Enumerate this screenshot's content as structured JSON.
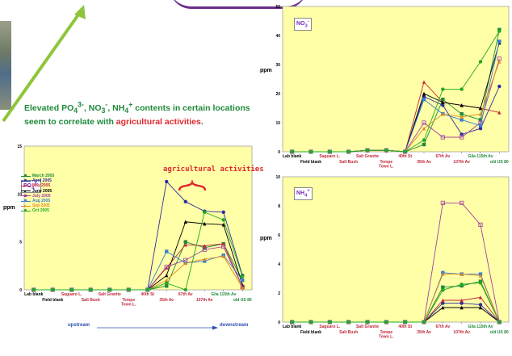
{
  "headline": {
    "text": "Elevated PO43-, NO3-, NH4+ contents in certain locations seem to correlate with",
    "highlight": "agricultural activities",
    "tail": "."
  },
  "annotation": {
    "text": "agricultural activities"
  },
  "flow": {
    "upstream": "upstream",
    "downstream": "downstream"
  },
  "colors": {
    "green": "#1e8a3a",
    "red": "#e0282e",
    "purple": "#7a2fb5",
    "plot_bg": "#ffffa8",
    "arrow": "#8fc53a",
    "flow_blue": "#2c4fb0"
  },
  "categories": [
    {
      "label": "Lab blank",
      "color": "#000000"
    },
    {
      "label": "Field blank",
      "color": "#000000"
    },
    {
      "label": "Saguaro L.",
      "color": "#c0283a"
    },
    {
      "label": "Salt Bush",
      "color": "#c0283a"
    },
    {
      "label": "Salt Granite",
      "color": "#c0283a"
    },
    {
      "label": "Tempe Town L.",
      "color": "#c0283a"
    },
    {
      "label": "40th St",
      "color": "#c0283a"
    },
    {
      "label": "35th Av",
      "color": "#c0283a"
    },
    {
      "label": "67th Av",
      "color": "#c0283a"
    },
    {
      "label": "107th Av",
      "color": "#c0283a"
    },
    {
      "label": "Gila 115th Av",
      "color": "#1e8a3a"
    },
    {
      "label": "old US 80",
      "color": "#1e8a3a"
    }
  ],
  "months": [
    {
      "name": "March 2005",
      "color": "#1e8a3a",
      "marker": "square"
    },
    {
      "name": "April 2005",
      "color": "#2c2ca0",
      "marker": "circle"
    },
    {
      "name": "May 2005",
      "color": "#c0283a",
      "marker": "triangle"
    },
    {
      "name": "June 2005",
      "color": "#000000",
      "marker": "triangle"
    },
    {
      "name": "July 2005",
      "color": "#a040a0",
      "marker": "square-open"
    },
    {
      "name": "Aug 2005",
      "color": "#3a7fd0",
      "marker": "square"
    },
    {
      "name": "Sep 2005",
      "color": "#e08a1e",
      "marker": "triangle"
    },
    {
      "name": "Oct 2005",
      "color": "#22a822",
      "marker": "circle"
    }
  ],
  "chart_data": [
    {
      "type": "line",
      "id": "po4",
      "badge": "PO43-",
      "ylabel": "ppm",
      "ylim": [
        0,
        15
      ],
      "yticks": [
        0,
        5,
        10,
        15
      ],
      "series": [
        {
          "name": "March 2005",
          "values": [
            0,
            0,
            0,
            0,
            0,
            0,
            0,
            0.4,
            5,
            4.4,
            4.8,
            1.0
          ]
        },
        {
          "name": "April 2005",
          "values": [
            0,
            0,
            0,
            0,
            0,
            0,
            0,
            11.3,
            9.2,
            8.2,
            8.1,
            1.5
          ]
        },
        {
          "name": "May 2005",
          "values": [
            0,
            0,
            0,
            0,
            0,
            0,
            0,
            2.3,
            4.7,
            4.6,
            4.8,
            0.3
          ]
        },
        {
          "name": "June 2005",
          "values": [
            0,
            0,
            0,
            0,
            0,
            0,
            0,
            1.5,
            7.1,
            6.9,
            6.8,
            0.5
          ]
        },
        {
          "name": "July 2005",
          "values": [
            0,
            0,
            0,
            0,
            0,
            0,
            0,
            2.4,
            3.1,
            4.2,
            4.5,
            0.3
          ]
        },
        {
          "name": "Aug 2005",
          "values": [
            0,
            0,
            0,
            0,
            0,
            0,
            0,
            4.0,
            2.8,
            3.0,
            3.6,
            1.0
          ]
        },
        {
          "name": "Sep 2005",
          "values": [
            0,
            0,
            0,
            0,
            0,
            0,
            0,
            1.0,
            2.8,
            3.2,
            3.5,
            0.2
          ]
        },
        {
          "name": "Oct 2005",
          "values": [
            0,
            0,
            0,
            0,
            0,
            0,
            0,
            0.7,
            0,
            8.1,
            7.3,
            1.4
          ]
        }
      ]
    },
    {
      "type": "line",
      "id": "no3",
      "badge": "NO3-",
      "ylabel": "ppm",
      "ylim": [
        0,
        50
      ],
      "yticks": [
        0,
        10,
        20,
        30,
        40,
        50
      ],
      "series": [
        {
          "name": "March 2005",
          "values": [
            0,
            0,
            0,
            0,
            0.5,
            0.5,
            0,
            2.5,
            18,
            13,
            11,
            42
          ]
        },
        {
          "name": "April 2005",
          "values": [
            0,
            0,
            0,
            0,
            0.5,
            0.5,
            0,
            19,
            16,
            6,
            8,
            22.5
          ]
        },
        {
          "name": "May 2005",
          "values": [
            0,
            0,
            0,
            0,
            0.5,
            0.5,
            0,
            24,
            17,
            16,
            15,
            13.5
          ]
        },
        {
          "name": "June 2005",
          "values": [
            0,
            0,
            0,
            0,
            0.5,
            0.5,
            0,
            20,
            17,
            16,
            15,
            37.5
          ]
        },
        {
          "name": "July 2005",
          "values": [
            0,
            0,
            0,
            0,
            0.5,
            0.5,
            0,
            10,
            5,
            5,
            10,
            32
          ]
        },
        {
          "name": "Aug 2005",
          "values": [
            0,
            0,
            0,
            0,
            0.5,
            0.5,
            0,
            18,
            13,
            11,
            9,
            38
          ]
        },
        {
          "name": "Sep 2005",
          "values": [
            0,
            0,
            0,
            0,
            0.5,
            0.5,
            0,
            8,
            13,
            12,
            13,
            31
          ]
        },
        {
          "name": "Oct 2005",
          "values": [
            0,
            0,
            0,
            0,
            0.5,
            0.5,
            0,
            4,
            21.5,
            21.5,
            31,
            41.5
          ]
        }
      ]
    },
    {
      "type": "line",
      "id": "nh4",
      "badge": "NH4+",
      "ylabel": "ppm",
      "ylim": [
        0,
        10
      ],
      "yticks": [
        0,
        2,
        4,
        6,
        8,
        10
      ],
      "series": [
        {
          "name": "March 2005",
          "values": [
            0,
            0,
            0,
            0,
            0,
            0,
            0,
            0,
            2.4,
            2.5,
            2.8,
            0
          ]
        },
        {
          "name": "April 2005",
          "values": [
            0,
            0,
            0,
            0,
            0,
            0,
            0,
            0,
            1.3,
            1.3,
            1.2,
            0
          ]
        },
        {
          "name": "May 2005",
          "values": [
            0,
            0,
            0,
            0,
            0,
            0,
            0,
            0,
            1.5,
            1.5,
            1.7,
            0
          ]
        },
        {
          "name": "June 2005",
          "values": [
            0,
            0,
            0,
            0,
            0,
            0,
            0,
            0,
            1.0,
            1.0,
            1.0,
            0
          ]
        },
        {
          "name": "July 2005",
          "values": [
            0,
            0,
            0,
            0,
            0,
            0,
            0,
            0,
            8.2,
            8.2,
            6.7,
            0
          ]
        },
        {
          "name": "Aug 2005",
          "values": [
            0,
            0,
            0,
            0,
            0,
            0,
            0,
            0,
            3.4,
            3.3,
            3.3,
            0
          ]
        },
        {
          "name": "Sep 2005",
          "values": [
            0,
            0,
            0,
            0,
            0,
            0,
            0,
            0,
            3.3,
            3.3,
            3.2,
            0
          ]
        },
        {
          "name": "Oct 2005",
          "values": [
            0,
            0,
            0,
            0,
            0,
            0,
            0,
            0,
            2.2,
            2.6,
            2.7,
            0
          ]
        }
      ]
    }
  ]
}
